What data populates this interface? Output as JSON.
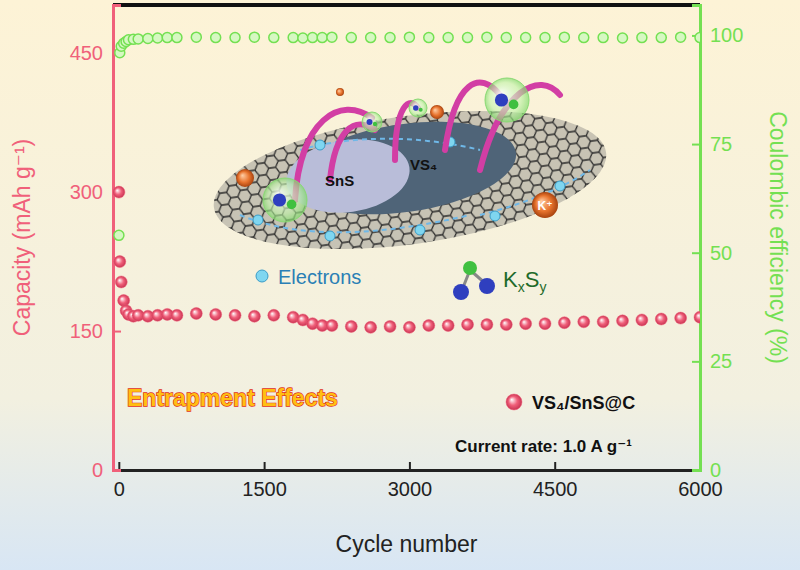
{
  "chart_data": {
    "type": "scatter",
    "x_label": "Cycle number",
    "y_label": "Capacity (mAh g⁻¹)",
    "y2_label": "Coulombic efficiency (%)",
    "annotations": [
      "Entrapment Effects",
      "Current rate: 1.0 A g⁻¹",
      "SnS",
      "VS₄",
      "K⁺",
      "Electrons",
      "KxSy"
    ],
    "x": [
      1,
      10,
      25,
      50,
      75,
      100,
      150,
      200,
      300,
      400,
      500,
      600,
      800,
      1000,
      1200,
      1400,
      1600,
      1800,
      1900,
      2000,
      2100,
      2200,
      2400,
      2600,
      2800,
      3000,
      3200,
      3400,
      3600,
      3800,
      4000,
      4200,
      4400,
      4600,
      4800,
      5000,
      5200,
      5400,
      5600,
      5800,
      6000
    ],
    "series": [
      {
        "name": "VS₄/SnS@C",
        "color": "#f0607a",
        "marker": "circle",
        "values": [
          300,
          225,
          203,
          183,
          172,
          168,
          166,
          167,
          166,
          167,
          168,
          167,
          169,
          168,
          167,
          166,
          167,
          165,
          162,
          158,
          156,
          156,
          155,
          154,
          155,
          154,
          156,
          156,
          157,
          157,
          157,
          158,
          158,
          159,
          160,
          160,
          161,
          162,
          163,
          164,
          165
        ]
      },
      {
        "color": "#74e052",
        "marker": "circle",
        "axis": "y2",
        "values": [
          54,
          96,
          97.5,
          98.2,
          98.6,
          99,
          99.1,
          99.2,
          99.3,
          99.4,
          99.5,
          99.5,
          99.6,
          99.5,
          99.5,
          99.6,
          99.5,
          99.5,
          99.4,
          99.5,
          99.5,
          99.6,
          99.5,
          99.5,
          99.5,
          99.6,
          99.5,
          99.5,
          99.5,
          99.6,
          99.5,
          99.5,
          99.5,
          99.6,
          99.5,
          99.5,
          99.4,
          99.5,
          99.5,
          99.6,
          99.5
        ]
      }
    ],
    "xlim": [
      -60,
      6000
    ],
    "xticks": [
      0,
      1500,
      3000,
      4500,
      6000
    ],
    "ylim": [
      0,
      502
    ],
    "yticks": [
      0,
      150,
      300,
      450
    ],
    "y2lim": [
      0,
      107
    ],
    "y2ticks": [
      0,
      25,
      50,
      75,
      100
    ],
    "legend": "lower right",
    "grid": false
  }
}
